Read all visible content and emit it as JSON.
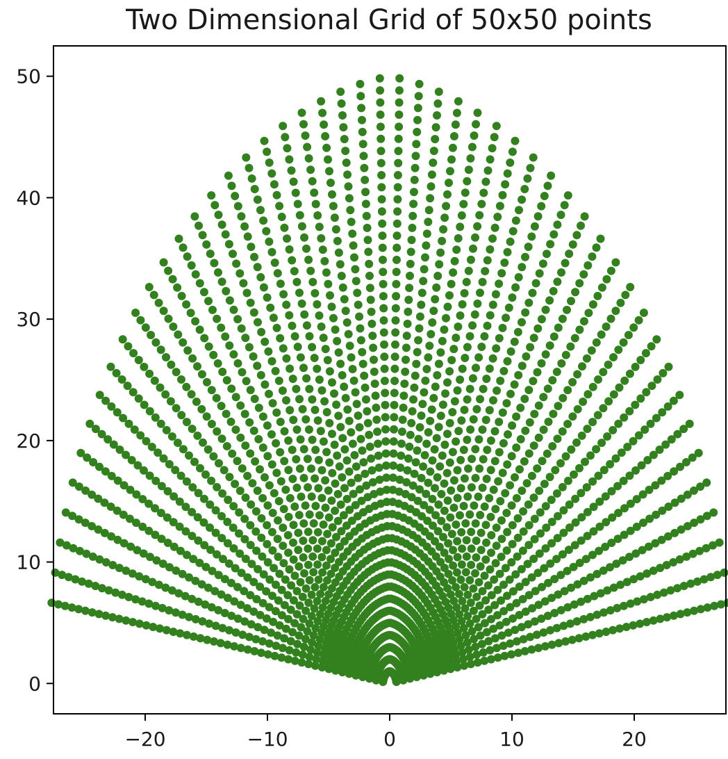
{
  "chart_data": {
    "type": "scatter",
    "title": "Two Dimensional Grid of 50x50 points",
    "xlabel": "",
    "ylabel": "",
    "xlim": [
      -27.5,
      27.5
    ],
    "ylim": [
      -2.5,
      52.5
    ],
    "xticks": [
      -20,
      -10,
      0,
      10,
      20
    ],
    "yticks": [
      0,
      10,
      20,
      30,
      40,
      50
    ],
    "xtick_labels": [
      "−20",
      "−10",
      "0",
      "10",
      "20"
    ],
    "ytick_labels": [
      "0",
      "10",
      "20",
      "30",
      "40",
      "50"
    ],
    "grid": false,
    "marker_color": "#33801f",
    "points": {
      "description_of_generation": "",
      "grid_size": [
        50,
        50
      ]
    }
  }
}
